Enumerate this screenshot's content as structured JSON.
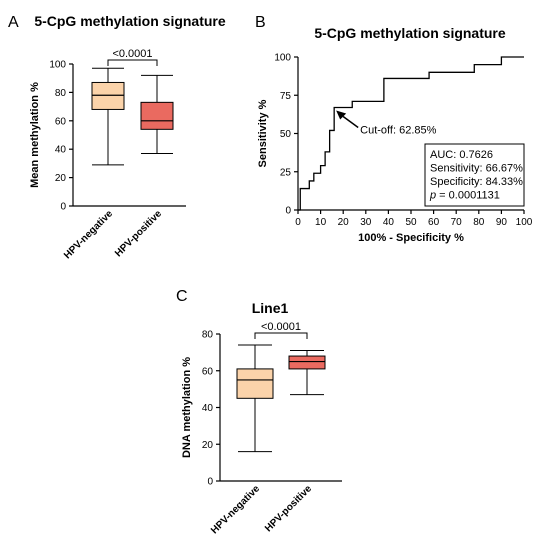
{
  "panels": {
    "a": {
      "letter": "A",
      "title": "5-CpG methylation signature"
    },
    "b": {
      "letter": "B",
      "title": "5-CpG methylation signature"
    },
    "c": {
      "letter": "C",
      "title": "Line1"
    }
  },
  "chart_data": [
    {
      "type": "box",
      "title": "5-CpG methylation signature",
      "xlabel": "",
      "ylabel": "Mean methylation %",
      "ylim": [
        0,
        100
      ],
      "yticks": [
        0,
        20,
        40,
        60,
        80,
        100
      ],
      "categories": [
        "HPV-negative",
        "HPV-positive"
      ],
      "boxes": [
        {
          "min": 29,
          "q1": 68,
          "median": 78,
          "q3": 87,
          "max": 97,
          "color": "#fbd3aa"
        },
        {
          "min": 37,
          "q1": 54,
          "median": 60,
          "q3": 73,
          "max": 92,
          "color": "#ea6a60"
        }
      ],
      "significance": "<0.0001"
    },
    {
      "type": "line",
      "title": "5-CpG methylation signature",
      "xlabel": "100% - Specificity %",
      "ylabel": "Sensitivity %",
      "xlim": [
        0,
        100
      ],
      "ylim": [
        0,
        100
      ],
      "xticks": [
        0,
        10,
        20,
        30,
        40,
        50,
        60,
        70,
        80,
        90,
        100
      ],
      "yticks": [
        0,
        25,
        50,
        75,
        100
      ],
      "series": [
        {
          "x": [
            0,
            1,
            1,
            5,
            5,
            7,
            7,
            10,
            10,
            12,
            12,
            14,
            14,
            16,
            16,
            24,
            24,
            38,
            38,
            58,
            58,
            78,
            78,
            90,
            90,
            100
          ],
          "y": [
            0,
            0,
            14,
            14,
            19,
            19,
            24,
            24,
            29,
            29,
            38,
            38,
            52,
            52,
            67,
            67,
            71,
            71,
            86,
            86,
            90,
            90,
            95,
            95,
            100,
            100
          ]
        }
      ],
      "cutoff": {
        "label": "Cut-off: 62.85%",
        "x": 16,
        "y": 67
      },
      "stats": [
        "AUC: 0.7626",
        "Sensitivity: 66.67%",
        "Specificity: 84.33%"
      ],
      "p_value": {
        "symbol": "p",
        "text": " = 0.0001131"
      }
    },
    {
      "type": "box",
      "title": "Line1",
      "xlabel": "",
      "ylabel": "DNA methylation %",
      "ylim": [
        0,
        80
      ],
      "yticks": [
        0,
        20,
        40,
        60,
        80
      ],
      "categories": [
        "HPV-negative",
        "HPV-positive"
      ],
      "boxes": [
        {
          "min": 16,
          "q1": 45,
          "median": 55,
          "q3": 61,
          "max": 74,
          "color": "#fbd3aa"
        },
        {
          "min": 47,
          "q1": 61,
          "median": 65,
          "q3": 68,
          "max": 71,
          "color": "#ea6a60"
        }
      ],
      "significance": "<0.0001"
    }
  ]
}
